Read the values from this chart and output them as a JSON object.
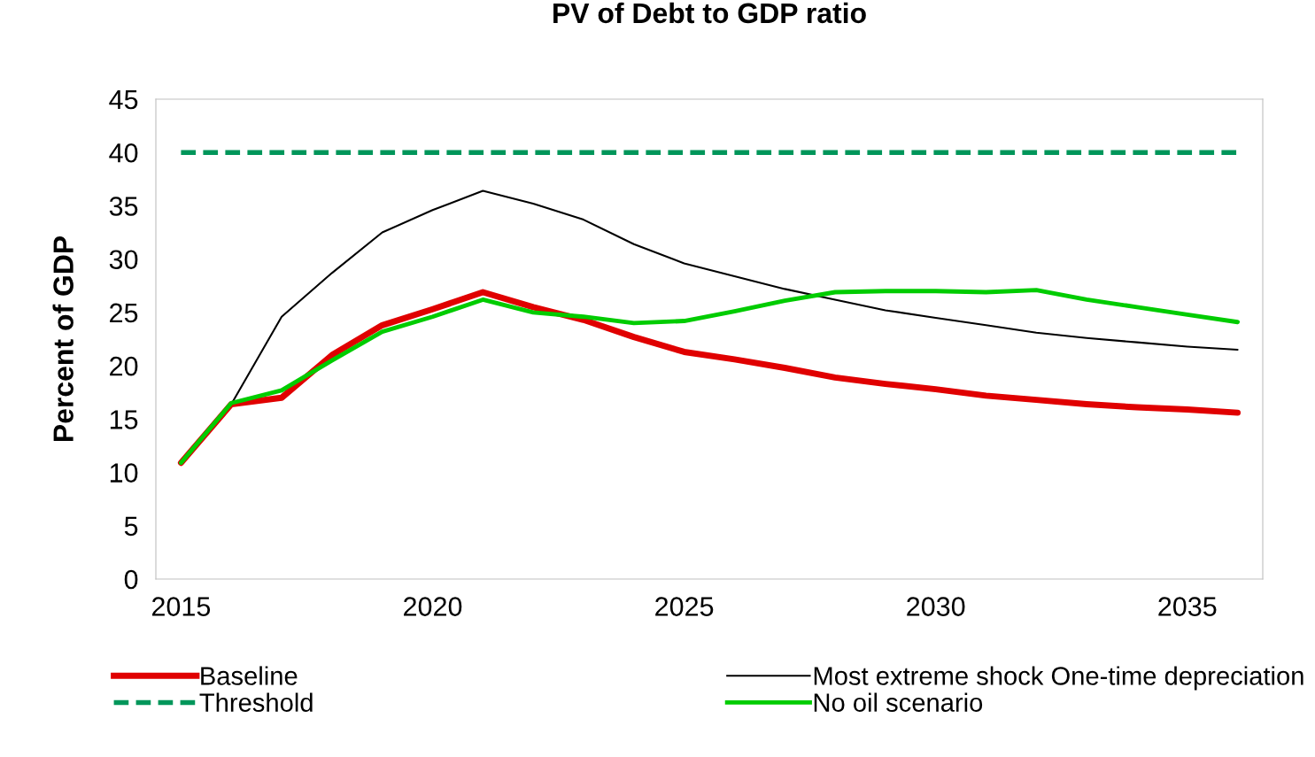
{
  "chart_data": {
    "type": "line",
    "title": "PV of Debt to GDP ratio",
    "ylabel": "Percent of GDP",
    "x": [
      2015,
      2016,
      2017,
      2018,
      2019,
      2020,
      2021,
      2022,
      2023,
      2024,
      2025,
      2026,
      2027,
      2028,
      2029,
      2030,
      2031,
      2032,
      2033,
      2034,
      2035,
      2036
    ],
    "series": [
      {
        "name": "Baseline",
        "color": "#e00000",
        "line_style": "solid",
        "values": [
          10.9,
          16.4,
          17.0,
          21.0,
          23.8,
          25.3,
          26.9,
          25.5,
          24.3,
          22.7,
          21.3,
          20.6,
          19.8,
          18.9,
          18.3,
          17.8,
          17.2,
          16.8,
          16.4,
          16.1,
          15.9,
          15.6
        ]
      },
      {
        "name": "Threshold",
        "color": "#00965a",
        "line_style": "dashed",
        "values": [
          40,
          40,
          40,
          40,
          40,
          40,
          40,
          40,
          40,
          40,
          40,
          40,
          40,
          40,
          40,
          40,
          40,
          40,
          40,
          40,
          40,
          40
        ]
      },
      {
        "name": "Most extreme shock One-time depreciation",
        "color": "#000000",
        "line_style": "solid",
        "values": [
          10.9,
          16.4,
          24.6,
          28.7,
          32.5,
          34.6,
          36.4,
          35.2,
          33.7,
          31.4,
          29.6,
          28.4,
          27.2,
          26.2,
          25.2,
          24.5,
          23.8,
          23.1,
          22.6,
          22.2,
          21.8,
          21.5
        ]
      },
      {
        "name": "No oil scenario",
        "color": "#00cc00",
        "line_style": "solid",
        "values": [
          10.9,
          16.5,
          17.7,
          20.5,
          23.2,
          24.6,
          26.2,
          25.0,
          24.6,
          24.0,
          24.2,
          25.1,
          26.1,
          26.9,
          27.0,
          27.0,
          26.9,
          27.1,
          26.2,
          25.5,
          24.8,
          24.1
        ]
      }
    ],
    "xlim": [
      2014.5,
      2036.5
    ],
    "xticks": [
      2015,
      2020,
      2025,
      2030,
      2035
    ],
    "ylim": [
      0,
      45
    ],
    "yticks": [
      0,
      5,
      10,
      15,
      20,
      25,
      30,
      35,
      40,
      45
    ],
    "grid": false,
    "legend": "bottom",
    "marker": "none"
  }
}
